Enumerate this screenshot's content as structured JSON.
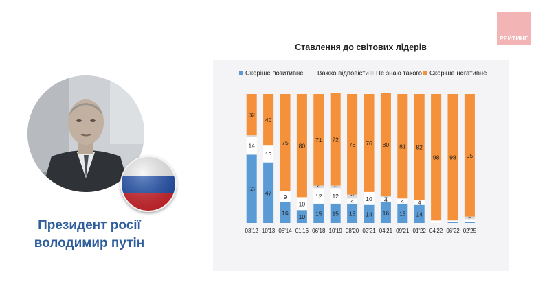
{
  "logo": {
    "text": "РЕЙТИНГ",
    "color": "#f2b4b4"
  },
  "person": {
    "caption_line1": "Президент росії",
    "caption_line2": "володимир путін",
    "flag": "russian-flag-icon"
  },
  "chart_data": {
    "type": "bar",
    "stacked": true,
    "title": "Ставлення до світових лідерів",
    "legend_position": "top",
    "categories": [
      "03'12",
      "10'13",
      "08'14",
      "01'16",
      "06'18",
      "10'19",
      "08'20",
      "02'21",
      "04'21",
      "09'21",
      "01'22",
      "04'22",
      "06'22",
      "02'25"
    ],
    "series": [
      {
        "name": "Скоріше позитивне",
        "color": "#5b9bd5",
        "values": [
          53,
          47,
          16,
          10,
          15,
          15,
          15,
          14,
          16,
          15,
          14,
          0,
          1,
          1
        ]
      },
      {
        "name": "Важко відповісти",
        "color": "#ffffff",
        "values": [
          14,
          13,
          9,
          10,
          12,
          12,
          4,
          10,
          4,
          4,
          4,
          2,
          1,
          2
        ]
      },
      {
        "name": "Не знаю такого",
        "color": "#d9d9d9",
        "values": [
          1,
          0,
          0,
          0,
          2,
          2,
          3,
          0,
          1,
          0,
          0,
          0,
          0,
          2
        ]
      },
      {
        "name": "Скоріше негативне",
        "color": "#f4913a",
        "values": [
          32,
          40,
          75,
          80,
          71,
          72,
          78,
          76,
          80,
          81,
          82,
          98,
          98,
          95
        ]
      }
    ],
    "data_labels": {
      "Скоріше позитивне": [
        "53",
        "47",
        "16",
        "10",
        "15",
        "15",
        "15",
        "14",
        "16",
        "15",
        "14",
        "0",
        "1",
        "1"
      ],
      "Важко відповісти": [
        "14",
        "13",
        "9",
        "10",
        "12",
        "12",
        "4",
        "10",
        "4",
        "4",
        "4",
        "",
        "",
        ""
      ],
      "Не знаю такого": [
        "",
        "",
        "",
        "",
        "2",
        "2",
        "3",
        "",
        "1",
        "",
        "",
        "",
        "",
        "2"
      ],
      "Скоріше негативне": [
        "32",
        "40",
        "75",
        "80",
        "71",
        "72",
        "78",
        "76",
        "80",
        "81",
        "82",
        "98",
        "98",
        "95"
      ]
    },
    "ylim": [
      0,
      100
    ],
    "grid": false
  }
}
